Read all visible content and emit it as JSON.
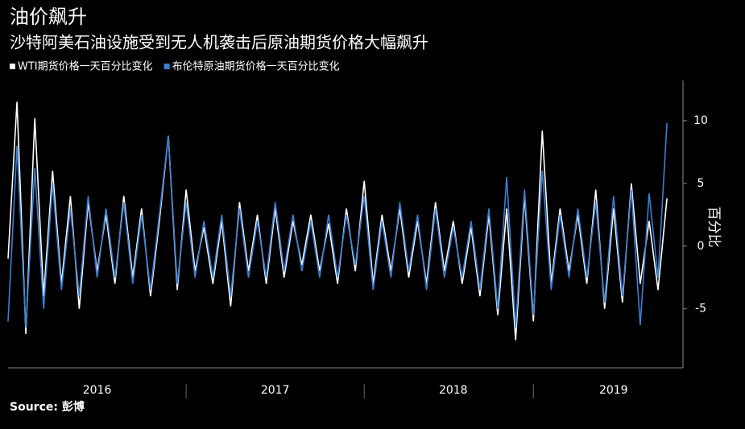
{
  "chart_data": {
    "type": "line",
    "title": "油价飙升",
    "subtitle": "沙特阿美石油设施受到无人机袭击后原油期货价格大幅飙升",
    "y_label": "百分比",
    "source": "Source: 彭博",
    "legend": "top-left",
    "x": [
      2016.0,
      2016.05,
      2016.1,
      2016.15,
      2016.2,
      2016.25,
      2016.3,
      2016.35,
      2016.4,
      2016.45,
      2016.5,
      2016.55,
      2016.6,
      2016.65,
      2016.7,
      2016.75,
      2016.8,
      2016.85,
      2016.9,
      2016.95,
      2017.0,
      2017.05,
      2017.1,
      2017.15,
      2017.2,
      2017.25,
      2017.3,
      2017.35,
      2017.4,
      2017.45,
      2017.5,
      2017.55,
      2017.6,
      2017.65,
      2017.7,
      2017.75,
      2017.8,
      2017.85,
      2017.9,
      2017.95,
      2018.0,
      2018.05,
      2018.1,
      2018.15,
      2018.2,
      2018.25,
      2018.3,
      2018.35,
      2018.4,
      2018.45,
      2018.5,
      2018.55,
      2018.6,
      2018.65,
      2018.7,
      2018.75,
      2018.8,
      2018.85,
      2018.9,
      2018.95,
      2019.0,
      2019.05,
      2019.1,
      2019.15,
      2019.2,
      2019.25,
      2019.3,
      2019.35,
      2019.4,
      2019.45,
      2019.5,
      2019.55,
      2019.6,
      2019.65,
      2019.7
    ],
    "series": [
      {
        "name": "WTI期货价格一天百分比变化",
        "color": "#ffffff",
        "values": [
          -1,
          11.5,
          -7,
          10.2,
          -4,
          6,
          -3,
          4,
          -5,
          3.5,
          -2,
          2.5,
          -3,
          4,
          -2.5,
          3,
          -4,
          2,
          8.8,
          -3.5,
          4.5,
          -2,
          1.5,
          -3,
          2,
          -4.8,
          3.5,
          -2,
          2.5,
          -3,
          3,
          -2.5,
          2,
          -1.5,
          2.5,
          -2,
          1.8,
          -3,
          3,
          -2,
          5.2,
          -3,
          2.5,
          -2,
          3,
          -2.5,
          2,
          -3,
          3.5,
          -2,
          2,
          -3,
          1.5,
          -4,
          2.5,
          -5.5,
          3,
          -7.5,
          4,
          -6,
          9.2,
          -3,
          3,
          -2,
          2.5,
          -3,
          4.5,
          -5,
          3,
          -4.5,
          5,
          -3,
          2,
          -3.5,
          3.8
        ]
      },
      {
        "name": "布伦特原油期货价格一天百分比变化",
        "color": "#3a7fd5",
        "values": [
          -6,
          8,
          -6.5,
          6.2,
          -5,
          5,
          -3.5,
          3,
          -4,
          4,
          -2.5,
          3,
          -2.5,
          3.5,
          -3,
          2.5,
          -3.5,
          2.5,
          8.8,
          -3,
          3.5,
          -2.5,
          2,
          -2.5,
          2.5,
          -4,
          3,
          -2.5,
          2,
          -2.5,
          3.5,
          -2,
          2.5,
          -2,
          2,
          -2.5,
          2.5,
          -2.5,
          2.5,
          -1.5,
          4,
          -3.5,
          2,
          -2.5,
          3.5,
          -2,
          2.5,
          -3.5,
          3,
          -2.5,
          1.5,
          -2.5,
          2,
          -3.5,
          3,
          -5,
          5.5,
          -6.5,
          4.5,
          -5.5,
          6,
          -3.5,
          2.5,
          -2.5,
          3,
          -2.5,
          3.5,
          -4.5,
          4,
          -4,
          4.5,
          -6.3,
          4.2,
          -2.5,
          9.8
        ]
      }
    ],
    "xlim": [
      2016,
      2019.79
    ],
    "xticks": [
      {
        "value": 2016.5,
        "label": "2016"
      },
      {
        "value": 2017.5,
        "label": "2017"
      },
      {
        "value": 2018.5,
        "label": "2018"
      },
      {
        "value": 2019.4,
        "label": "2019"
      }
    ],
    "ylim": [
      -9.7,
      13.2
    ],
    "yticks": [
      -5,
      0,
      5,
      10
    ],
    "grid": false
  }
}
